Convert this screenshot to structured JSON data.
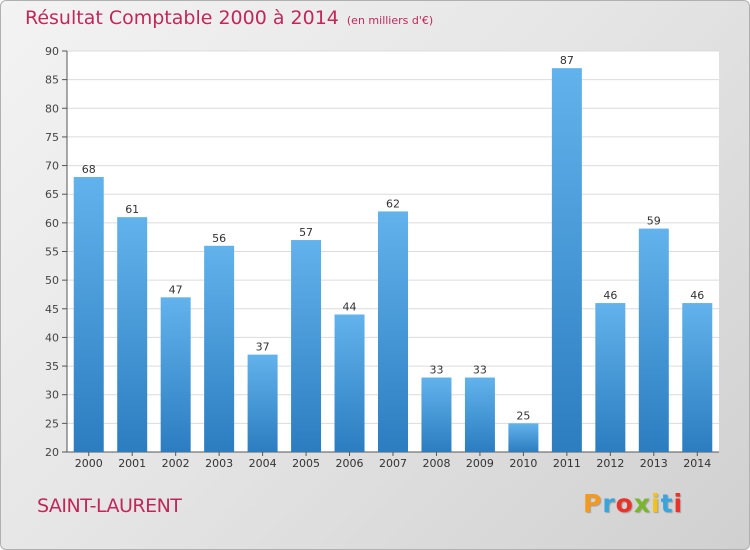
{
  "chart_data": {
    "type": "bar",
    "title": "Résultat Comptable 2000 à 2014",
    "subtitle": "(en milliers d'€)",
    "categories": [
      "2000",
      "2001",
      "2002",
      "2003",
      "2004",
      "2005",
      "2006",
      "2007",
      "2008",
      "2009",
      "2010",
      "2011",
      "2012",
      "2013",
      "2014"
    ],
    "values": [
      68,
      61,
      47,
      56,
      37,
      57,
      44,
      62,
      33,
      33,
      25,
      87,
      46,
      59,
      46
    ],
    "xlabel": "",
    "ylabel": "",
    "ylim": [
      20,
      90
    ],
    "yticks": [
      20,
      25,
      30,
      35,
      40,
      45,
      50,
      55,
      60,
      65,
      70,
      75,
      80,
      85,
      90
    ],
    "grid": true,
    "bar_color": "#3f93d6"
  },
  "footer": {
    "location": "SAINT-LAURENT",
    "brand": [
      "P",
      "r",
      "o",
      "x",
      "i",
      "t",
      "i"
    ],
    "brand_colors": [
      "#f29a1f",
      "#3aa5dc",
      "#e8332a",
      "#7ab62b",
      "#f2c21c",
      "#3aa5dc",
      "#e8332a"
    ]
  },
  "colors": {
    "accent": "#c0285a"
  }
}
